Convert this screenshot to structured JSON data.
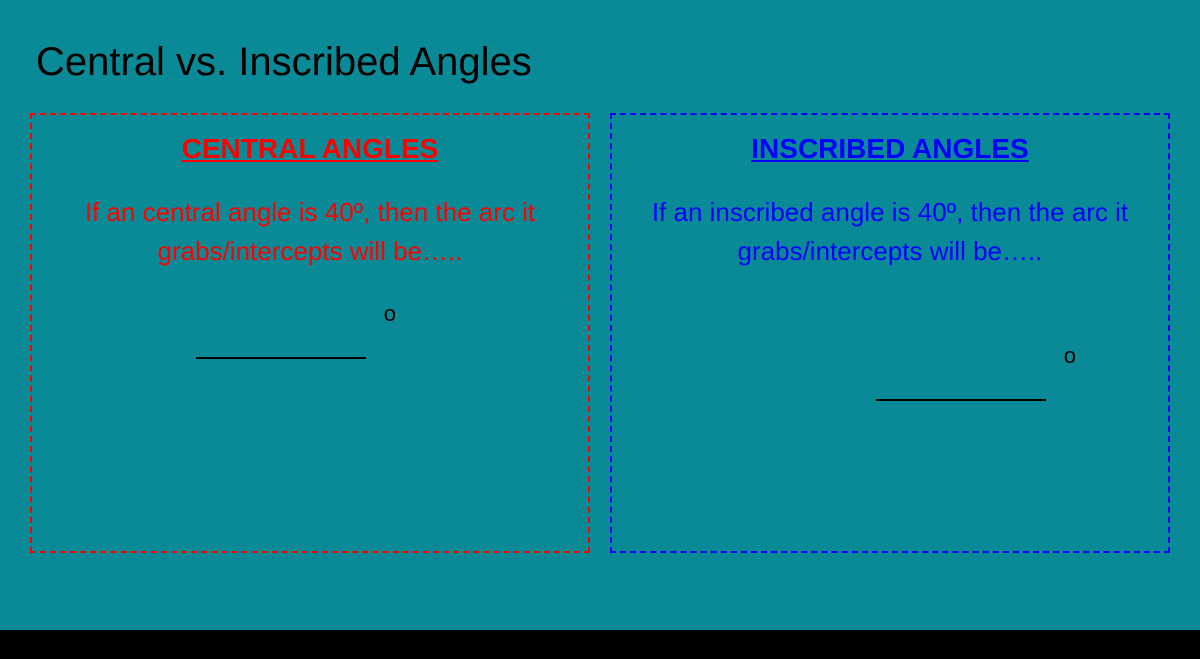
{
  "slide": {
    "background_color": "#0a8a96",
    "title": "Central vs. Inscribed Angles",
    "title_color": "#000000",
    "title_fontsize": 40
  },
  "left_box": {
    "border_color": "#ff0000",
    "heading": "CENTRAL ANGLES",
    "heading_color": "#ff0000",
    "body_html": "If an central angle is 40º, then the arc it grabs/intercepts will be…..",
    "body_color": "#ff0000",
    "blank_degree": "o"
  },
  "right_box": {
    "border_color": "#0000ff",
    "heading": "INSCRIBED ANGLES",
    "heading_color": "#0000ff",
    "body_html": "If an inscribed angle is 40º, then the arc it grabs/intercepts will be…..",
    "body_color": "#0000ff",
    "blank_degree": "o"
  },
  "bottom_bar_color": "#000000"
}
